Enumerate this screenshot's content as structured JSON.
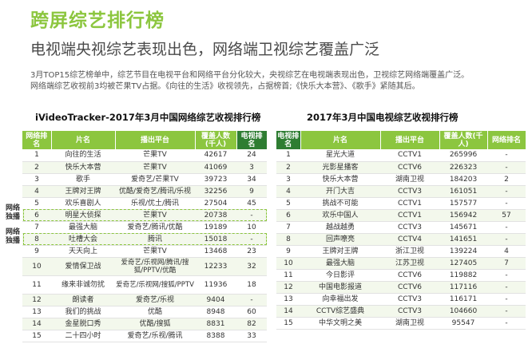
{
  "page": {
    "title": "跨屏综艺排行榜",
    "subtitle": "电视端央视综艺表现出色，网络端卫视综艺覆盖广泛",
    "desc_line1": "3月TOP15综艺榜单中，综艺节目在电视平台和网络平台分化较大，央视综艺在电视端表现出色，卫视综艺网络端覆盖广泛。",
    "desc_line2": "网络端综艺收视前3均被芒果TV占据。《向往的生活》收视领先，占据榜首;《快乐大本营》、《歌手》紧随其后。"
  },
  "exclusive_label": "网络独播",
  "chart_data": [
    {
      "type": "table",
      "title": "iVideoTracker-2017年3月中国网络综艺收视排行榜",
      "columns": [
        "网络排名",
        "片名",
        "播出平台",
        "覆盖人数(千人)",
        "电视排名"
      ],
      "rows": [
        [
          "1",
          "向往的生活",
          "芒果TV",
          "42617",
          "24"
        ],
        [
          "2",
          "快乐大本营",
          "芒果TV",
          "41069",
          "3"
        ],
        [
          "3",
          "歌手",
          "爱奇艺/芒果TV",
          "39723",
          "34"
        ],
        [
          "4",
          "王牌对王牌",
          "优酷/爱奇艺/腾讯/乐视",
          "32256",
          "9"
        ],
        [
          "5",
          "欢乐喜剧人",
          "乐视/优土/腾讯",
          "27504",
          "45"
        ],
        [
          "6",
          "明星大侦探",
          "芒果TV",
          "20738",
          "-"
        ],
        [
          "7",
          "最强大脑",
          "爱奇艺/腾讯/优酷",
          "19189",
          "10"
        ],
        [
          "8",
          "吐槽大会",
          "腾讯",
          "15018",
          "-"
        ],
        [
          "9",
          "天天向上",
          "芒果TV",
          "13468",
          "23"
        ],
        [
          "10",
          "爱情保卫战",
          "爱奇艺/乐视网/腾讯/搜狐/PPTV/优酷",
          "12233",
          "32"
        ],
        [
          "11",
          "缘来非诚勿扰",
          "爱奇艺/乐视网/搜狐/PPTV",
          "11936",
          "18"
        ],
        [
          "12",
          "朗读者",
          "爱奇艺/乐视",
          "9404",
          "-"
        ],
        [
          "13",
          "我们的挑战",
          "优酷",
          "8948",
          "60"
        ],
        [
          "14",
          "金星脱口秀",
          "优酷/搜狐",
          "8831",
          "82"
        ],
        [
          "15",
          "二十四小时",
          "爱奇艺/乐视/腾讯",
          "8388",
          "33"
        ]
      ],
      "exclusive_ranks": [
        "6",
        "8"
      ]
    },
    {
      "type": "table",
      "title": "2017年3月中国电视综艺收视排行榜",
      "columns": [
        "电视排名",
        "片名",
        "播出平台",
        "覆盖人数(千人)",
        "网络排名"
      ],
      "rows": [
        [
          "1",
          "星光大道",
          "CCTV1",
          "265996",
          "-"
        ],
        [
          "2",
          "光影星播客",
          "CCTV6",
          "226323",
          "-"
        ],
        [
          "3",
          "快乐大本营",
          "湖南卫视",
          "184203",
          "2"
        ],
        [
          "4",
          "开门大吉",
          "CCTV3",
          "161051",
          "-"
        ],
        [
          "5",
          "挑战不可能",
          "CCTV1",
          "157577",
          "-"
        ],
        [
          "6",
          "欢乐中国人",
          "CCTV1",
          "156942",
          "57"
        ],
        [
          "7",
          "越战越勇",
          "CCTV3",
          "145671",
          "-"
        ],
        [
          "8",
          "回声嘹亮",
          "CCTV4",
          "141651",
          "-"
        ],
        [
          "9",
          "王牌对王牌",
          "浙江卫视",
          "139224",
          "4"
        ],
        [
          "10",
          "最强大脑",
          "江苏卫视",
          "127405",
          "7"
        ],
        [
          "11",
          "今日影评",
          "CCTV6",
          "119882",
          "-"
        ],
        [
          "12",
          "中国电影报道",
          "CCTV6",
          "117116",
          "-"
        ],
        [
          "13",
          "向幸福出发",
          "CCTV3",
          "116171",
          "-"
        ],
        [
          "14",
          "CCTV综艺盛典",
          "CCTV3",
          "104660",
          "-"
        ],
        [
          "15",
          "中华文明之美",
          "湖南卫视",
          "95547",
          "-"
        ]
      ]
    }
  ],
  "colors": {
    "accent": "#8cc63f",
    "dark_header": "#2e7d32",
    "stripe": "#f3f8ec"
  }
}
